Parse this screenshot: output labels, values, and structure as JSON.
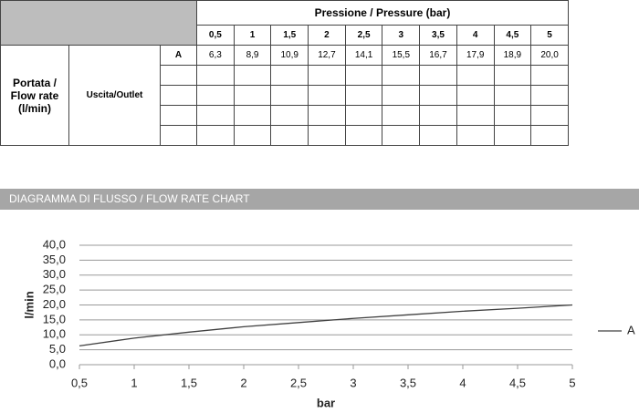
{
  "table": {
    "header": "Pressione / Pressure (bar)",
    "columns": [
      "0,5",
      "1",
      "1,5",
      "2",
      "2,5",
      "3",
      "3,5",
      "4",
      "4,5",
      "5"
    ],
    "row_label": "Portata / Flow rate (l/min)",
    "outlet_label": "Uscita/Outlet",
    "rows": [
      {
        "name": "A",
        "values": [
          "6,3",
          "8,9",
          "10,9",
          "12,7",
          "14,1",
          "15,5",
          "16,7",
          "17,9",
          "18,9",
          "20,0"
        ]
      }
    ]
  },
  "section_title": "DIAGRAMMA DI FLUSSO / FLOW RATE CHART",
  "chart_data": {
    "type": "line",
    "x_label": "bar",
    "y_label": "l/min",
    "x": [
      0.5,
      1,
      1.5,
      2,
      2.5,
      3,
      3.5,
      4,
      4.5,
      5
    ],
    "series": [
      {
        "name": "A",
        "color": "#404040",
        "values": [
          6.3,
          8.9,
          10.9,
          12.7,
          14.1,
          15.5,
          16.7,
          17.9,
          18.9,
          20.0
        ]
      }
    ],
    "xlim": [
      0.5,
      5
    ],
    "ylim": [
      0,
      40
    ],
    "xticks": [
      {
        "value": 0.5,
        "label": "0,5"
      },
      1,
      {
        "value": 1.5,
        "label": "1,5"
      },
      2,
      {
        "value": 2.5,
        "label": "2,5"
      },
      3,
      {
        "value": 3.5,
        "label": "3,5"
      },
      4,
      {
        "value": 4.5,
        "label": "4,5"
      },
      5
    ],
    "yticks": [
      {
        "value": 0,
        "label": "0,0"
      },
      {
        "value": 5,
        "label": "5,0"
      },
      {
        "value": 10,
        "label": "10,0"
      },
      {
        "value": 15,
        "label": "15,0"
      },
      {
        "value": 20,
        "label": "20,0"
      },
      {
        "value": 25,
        "label": "25,0"
      },
      {
        "value": 30,
        "label": "30,0"
      },
      {
        "value": 35,
        "label": "35,0"
      },
      {
        "value": 40,
        "label": "40,0"
      }
    ],
    "grid": true,
    "legend": "right"
  }
}
